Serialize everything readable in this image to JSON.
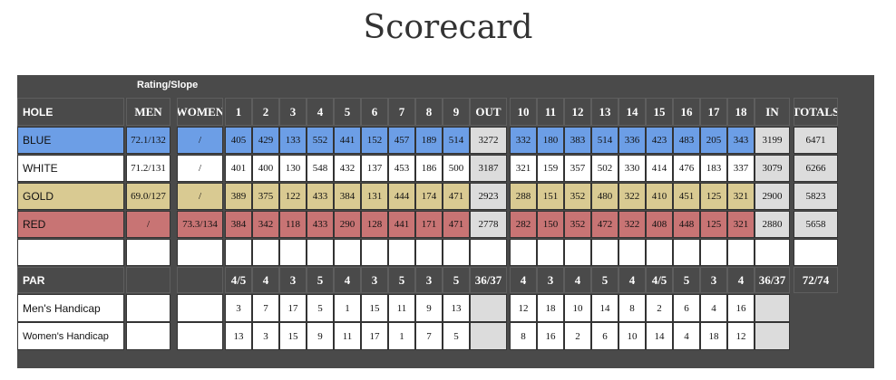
{
  "header": {
    "title": "Scorecard"
  },
  "table": {
    "rating_label": "Rating/Slope",
    "columns": [
      "HOLE",
      "MEN",
      "WOMEN",
      "1",
      "2",
      "3",
      "4",
      "5",
      "6",
      "7",
      "8",
      "9",
      "OUT",
      "10",
      "11",
      "12",
      "13",
      "14",
      "15",
      "16",
      "17",
      "18",
      "IN",
      "TOTALS"
    ],
    "rows": [
      {
        "label": "BLUE",
        "color": "#6c9ee6",
        "men": "72.1/132",
        "women": "/",
        "holes": [
          405,
          429,
          133,
          552,
          441,
          152,
          457,
          189,
          514,
          332,
          180,
          383,
          514,
          336,
          423,
          483,
          205,
          343
        ],
        "out": 3272,
        "in": 3199,
        "total": 6471
      },
      {
        "label": "WHITE",
        "color": "#ffffff",
        "men": "71.2/131",
        "women": "/",
        "holes": [
          401,
          400,
          130,
          548,
          432,
          137,
          453,
          186,
          500,
          321,
          159,
          357,
          502,
          330,
          414,
          476,
          183,
          337
        ],
        "out": 3187,
        "in": 3079,
        "total": 6266
      },
      {
        "label": "GOLD",
        "color": "#d9ca92",
        "men": "69.0/127",
        "women": "/",
        "holes": [
          389,
          375,
          122,
          433,
          384,
          131,
          444,
          174,
          471,
          288,
          151,
          352,
          480,
          322,
          410,
          451,
          125,
          321
        ],
        "out": 2923,
        "in": 2900,
        "total": 5823
      },
      {
        "label": "RED",
        "color": "#c87474",
        "men": "/",
        "women": "73.3/134",
        "holes": [
          384,
          342,
          118,
          433,
          290,
          128,
          441,
          171,
          471,
          282,
          150,
          352,
          472,
          322,
          408,
          448,
          125,
          321
        ],
        "out": 2778,
        "in": 2880,
        "total": 5658
      }
    ],
    "par": {
      "label": "PAR",
      "holes": [
        "4/5",
        4,
        3,
        5,
        4,
        3,
        5,
        3,
        5,
        4,
        3,
        4,
        5,
        4,
        "4/5",
        5,
        3,
        4
      ],
      "out": "36/37",
      "in": "36/37",
      "total": "72/74"
    },
    "handicaps": [
      {
        "label": "Men's Handicap",
        "holes": [
          3,
          7,
          17,
          5,
          1,
          15,
          11,
          9,
          13,
          12,
          18,
          10,
          14,
          8,
          2,
          6,
          4,
          16
        ]
      },
      {
        "label": "Women's Handicap",
        "holes": [
          13,
          3,
          15,
          9,
          11,
          17,
          1,
          7,
          5,
          8,
          16,
          2,
          6,
          10,
          14,
          4,
          18,
          12
        ]
      }
    ]
  }
}
